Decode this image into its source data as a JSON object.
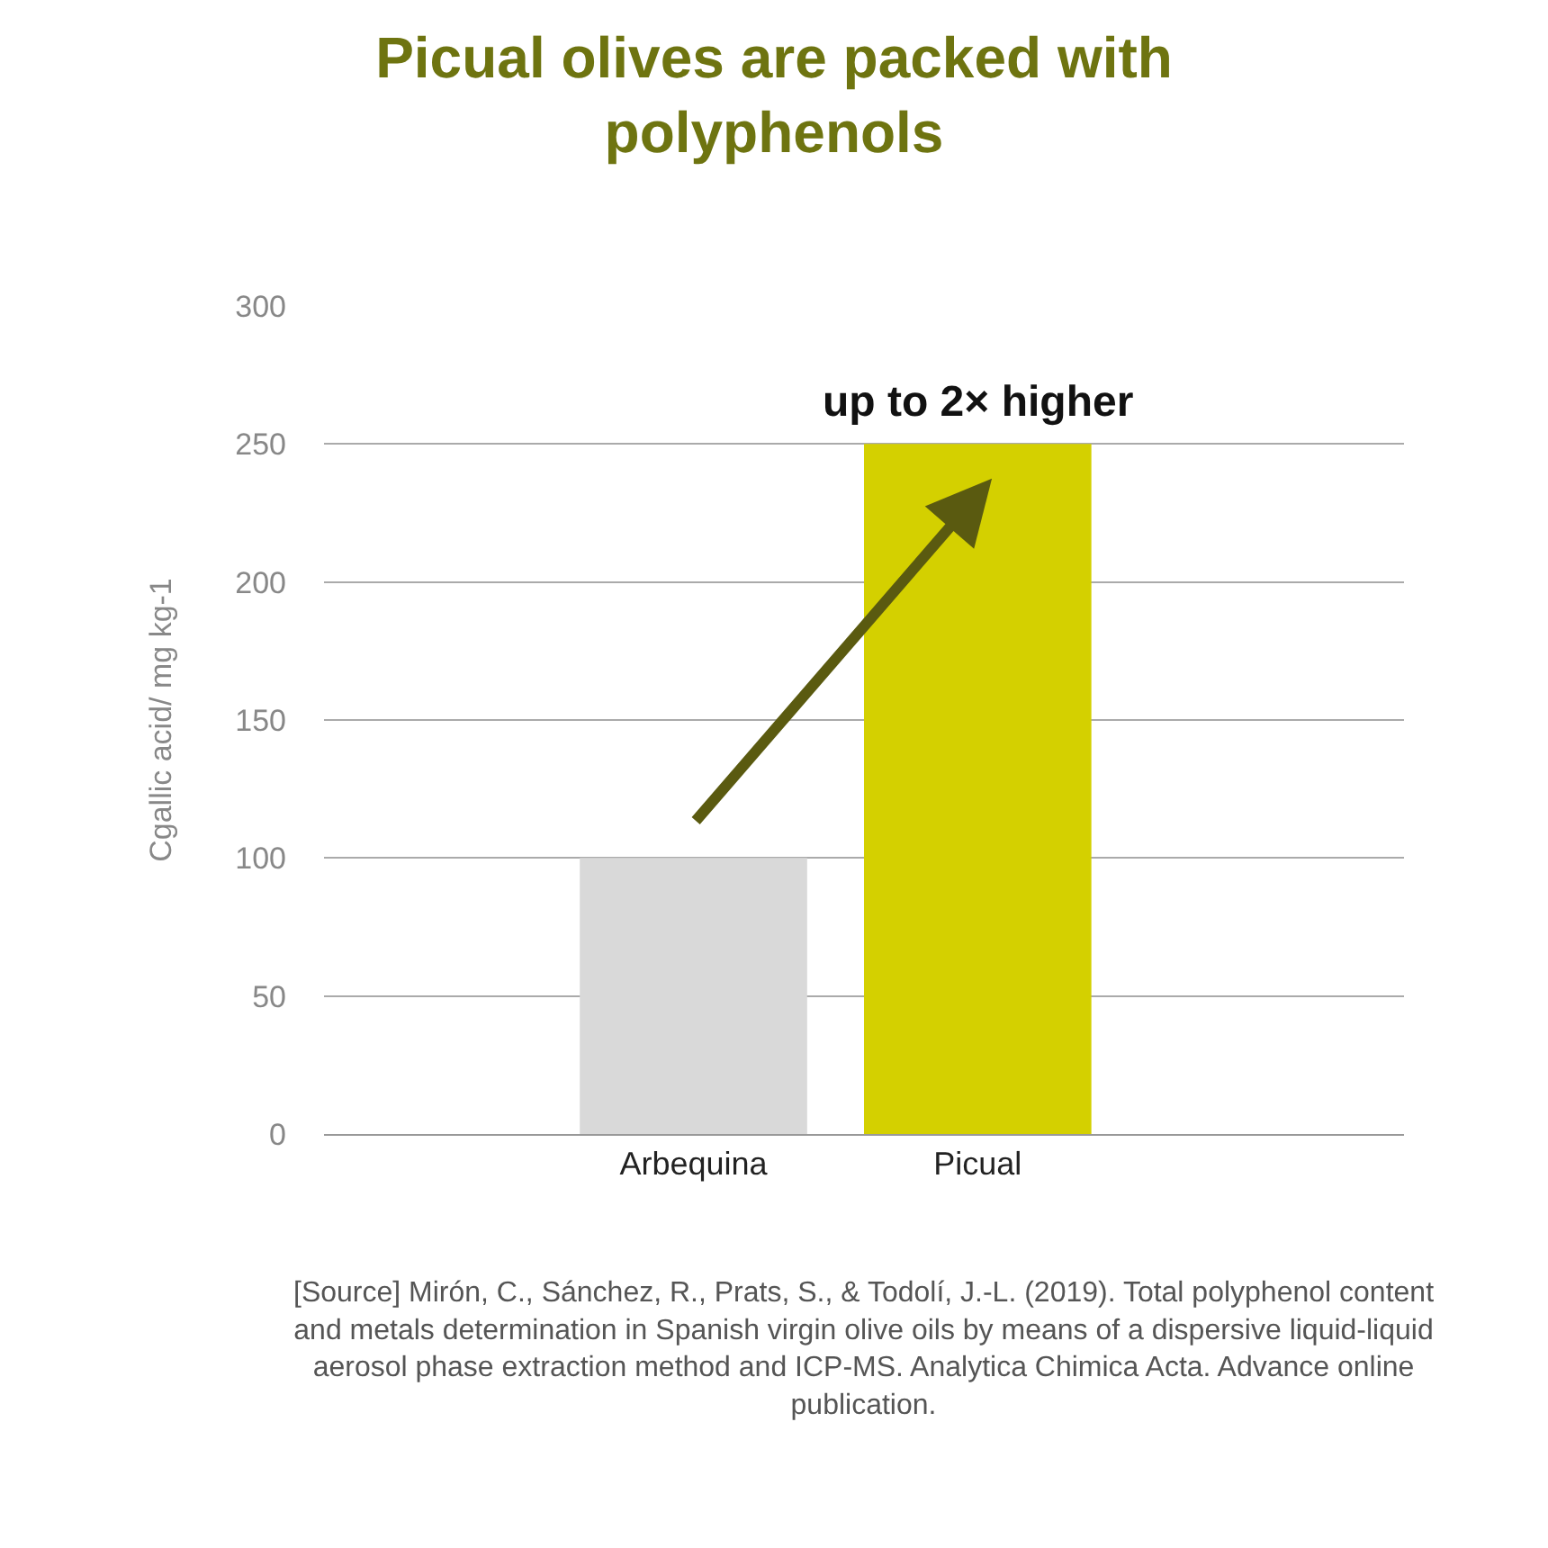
{
  "chart_data": {
    "type": "bar",
    "title": "Picual olives are packed with polyphenols",
    "ylabel": "Cgallic acid/ mg kg-1",
    "categories": [
      "Arbequina",
      "Picual"
    ],
    "values": [
      100,
      250
    ],
    "colors": [
      "#d9d9d9",
      "#d4d000"
    ],
    "ylim": [
      0,
      300
    ],
    "yticks": [
      0,
      50,
      100,
      150,
      200,
      250,
      300
    ],
    "grid": "y",
    "annotations": [
      {
        "text": "up to 2× higher",
        "x": "Picual",
        "y": 250
      },
      "[Source] Mirón, C., Sánchez, R., Prats, S., & Todolí, J.-L. (2019). Total polyphenol content and metals determination in Spanish virgin olive oils by means of a dispersive liquid-liquid aerosol phase extraction method and ICP-MS. Analytica Chimica Acta. Advance online publication."
    ]
  }
}
